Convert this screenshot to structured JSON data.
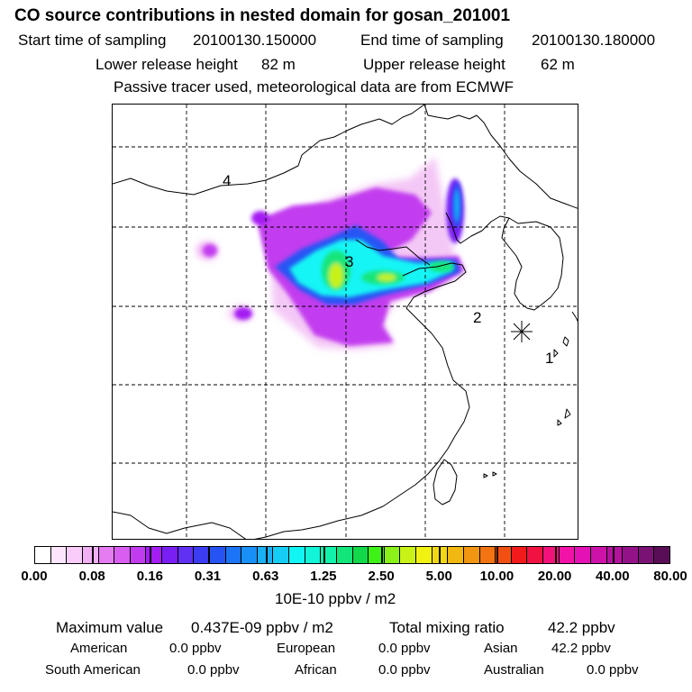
{
  "header": {
    "title": "CO  source contributions in nested domain for gosan_201001",
    "start_label": "Start time of sampling",
    "start_value": "20100130.150000",
    "end_label": "End time of sampling",
    "end_value": "20100130.180000",
    "lower_label": "Lower release height",
    "lower_value": "82 m",
    "upper_label": "Upper release height",
    "upper_value": "62 m",
    "tracer_note": "Passive tracer used, meteorological data are from ECMWF"
  },
  "map": {
    "receptor_symbol": "asterisk",
    "labels": [
      "4",
      "3",
      "2",
      "1"
    ],
    "colors": {
      "land_line": "#000000",
      "grid": "#000000"
    }
  },
  "colorbar": {
    "colors": [
      "#ffffff",
      "#fde6fd",
      "#f9ccf9",
      "#f1b0f3",
      "#e57cf1",
      "#d75ef0",
      "#c23cef",
      "#a41df2",
      "#7a1ff4",
      "#6030f3",
      "#3c3cf2",
      "#2654f4",
      "#1b74f6",
      "#1890f7",
      "#18b0f6",
      "#16cef5",
      "#12f5f5",
      "#12f5d8",
      "#12f2ab",
      "#12e57a",
      "#12d84a",
      "#3ef218",
      "#8af218",
      "#c8f218",
      "#f2f212",
      "#f2d812",
      "#f2b812",
      "#f29612",
      "#f27412",
      "#f25012",
      "#f21a1a",
      "#f21242",
      "#f2127a",
      "#f212a8",
      "#e412b4",
      "#cc12a8",
      "#b2129c",
      "#941288",
      "#7a1274",
      "#5a0d57"
    ],
    "tick_labels": [
      "0.00",
      "0.08",
      "0.16",
      "0.31",
      "0.63",
      "1.25",
      "2.50",
      "5.00",
      "10.00",
      "20.00",
      "40.00",
      "80.00"
    ],
    "unit": "10E-10 ppbv / m2"
  },
  "summary": {
    "max_label": "Maximum value",
    "max_value": "0.437E-09 ppbv / m2",
    "total_label": "Total mixing ratio",
    "total_value": "42.2 ppbv",
    "regions": [
      {
        "name": "American",
        "value": "0.0 ppbv"
      },
      {
        "name": "European",
        "value": "0.0 ppbv"
      },
      {
        "name": "Asian",
        "value": "42.2 ppbv"
      },
      {
        "name": "South American",
        "value": "0.0 ppbv"
      },
      {
        "name": "African",
        "value": "0.0 ppbv"
      },
      {
        "name": "Australian",
        "value": "0.0 ppbv"
      }
    ]
  }
}
